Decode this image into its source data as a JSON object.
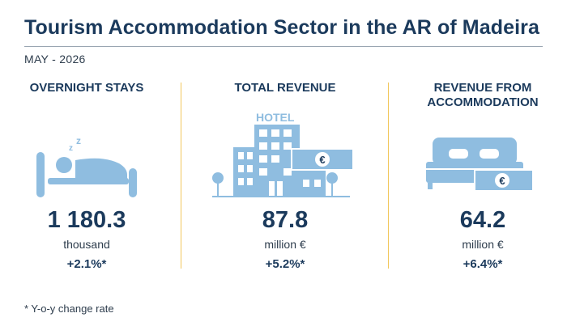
{
  "header": {
    "title": "Tourism Accommodation Sector in the AR of Madeira",
    "period": "MAY - 2026"
  },
  "colors": {
    "title": "#1b3a5c",
    "icon": "#8fbde0",
    "separator": "#f2c75c",
    "rule": "#9aa6b2"
  },
  "indicators": [
    {
      "title": "OVERNIGHT STAYS",
      "icon": "sleeping-person-in-bed-icon",
      "value": "1 180.3",
      "unit": "thousand",
      "change": "+2.1%*"
    },
    {
      "title": "TOTAL REVENUE",
      "icon": "hotel-building-euro-icon",
      "icon_label": "HOTEL",
      "value": "87.8",
      "unit": "million €",
      "change": "+5.2%*"
    },
    {
      "title_line1": "REVENUE FROM",
      "title_line2": "ACCOMMODATION",
      "icon": "double-bed-euro-icon",
      "value": "64.2",
      "unit": "million €",
      "change": "+6.4%*"
    }
  ],
  "euro_symbol": "€",
  "footnote": "* Y-o-y change rate"
}
